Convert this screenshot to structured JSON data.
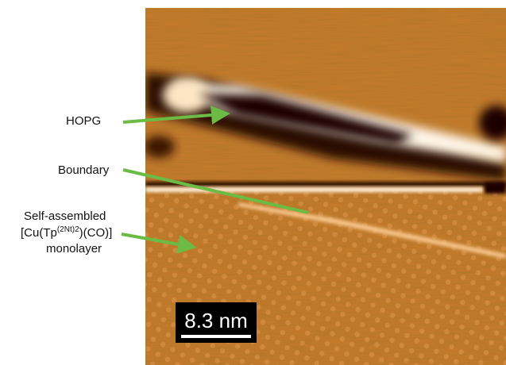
{
  "labels": {
    "hopg": "HOPG",
    "boundary": "Boundary",
    "sam_line1": "Self-assembled",
    "sam_line2_start": "[Cu(Tp",
    "sam_line2_sup": "(2Nt)2",
    "sam_line2_end": ")(CO)]",
    "sam_line3": "monolayer"
  },
  "scale_bar": {
    "label": "8.3 nm"
  }
}
